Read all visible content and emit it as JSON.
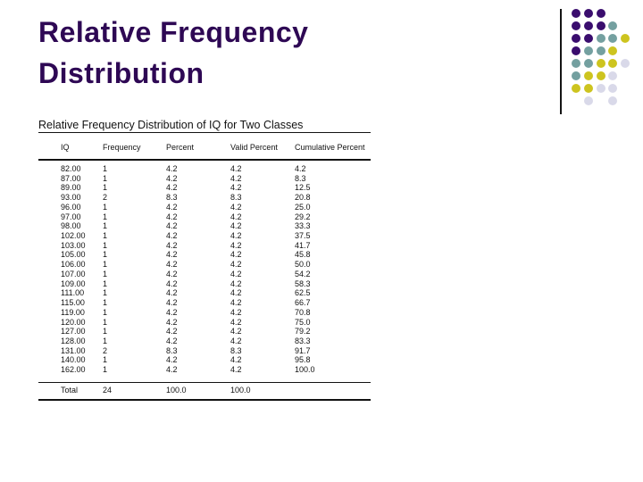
{
  "slide": {
    "title": "Relative Frequency Distribution"
  },
  "table": {
    "caption": "Relative Frequency Distribution of IQ for Two Classes",
    "headers": [
      "IQ",
      "Frequency",
      "Percent",
      "Valid Percent",
      "Cumulative Percent"
    ],
    "rows": [
      [
        "82.00",
        "1",
        "4.2",
        "4.2",
        "4.2"
      ],
      [
        "87.00",
        "1",
        "4.2",
        "4.2",
        "8.3"
      ],
      [
        "89.00",
        "1",
        "4.2",
        "4.2",
        "12.5"
      ],
      [
        "93.00",
        "2",
        "8.3",
        "8.3",
        "20.8"
      ],
      [
        "96.00",
        "1",
        "4.2",
        "4.2",
        "25.0"
      ],
      [
        "97.00",
        "1",
        "4.2",
        "4.2",
        "29.2"
      ],
      [
        "98.00",
        "1",
        "4.2",
        "4.2",
        "33.3"
      ],
      [
        "102.00",
        "1",
        "4.2",
        "4.2",
        "37.5"
      ],
      [
        "103.00",
        "1",
        "4.2",
        "4.2",
        "41.7"
      ],
      [
        "105.00",
        "1",
        "4.2",
        "4.2",
        "45.8"
      ],
      [
        "106.00",
        "1",
        "4.2",
        "4.2",
        "50.0"
      ],
      [
        "107.00",
        "1",
        "4.2",
        "4.2",
        "54.2"
      ],
      [
        "109.00",
        "1",
        "4.2",
        "4.2",
        "58.3"
      ],
      [
        "111.00",
        "1",
        "4.2",
        "4.2",
        "62.5"
      ],
      [
        "115.00",
        "1",
        "4.2",
        "4.2",
        "66.7"
      ],
      [
        "119.00",
        "1",
        "4.2",
        "4.2",
        "70.8"
      ],
      [
        "120.00",
        "1",
        "4.2",
        "4.2",
        "75.0"
      ],
      [
        "127.00",
        "1",
        "4.2",
        "4.2",
        "79.2"
      ],
      [
        "128.00",
        "1",
        "4.2",
        "4.2",
        "83.3"
      ],
      [
        "131.00",
        "2",
        "8.3",
        "8.3",
        "91.7"
      ],
      [
        "140.00",
        "1",
        "4.2",
        "4.2",
        "95.8"
      ],
      [
        "162.00",
        "1",
        "4.2",
        "4.2",
        "100.0"
      ]
    ],
    "total_row": [
      "Total",
      "24",
      "100.0",
      "100.0",
      ""
    ]
  },
  "decoration": {
    "dot_colors": {
      "P": "#3A0D6E",
      "T": "#74A0A0",
      "Y": "#CDC41F",
      "L": "#D9D9E9"
    },
    "pattern": [
      [
        [
          1,
          "P"
        ],
        [
          2,
          "P"
        ],
        [
          3,
          "P"
        ]
      ],
      [
        [
          1,
          "P"
        ],
        [
          2,
          "P"
        ],
        [
          3,
          "P"
        ],
        [
          4,
          "T"
        ]
      ],
      [
        [
          1,
          "P"
        ],
        [
          2,
          "P"
        ],
        [
          3,
          "T"
        ],
        [
          4,
          "T"
        ],
        [
          5,
          "Y"
        ]
      ],
      [
        [
          1,
          "P"
        ],
        [
          2,
          "T"
        ],
        [
          3,
          "T"
        ],
        [
          4,
          "Y"
        ]
      ],
      [
        [
          1,
          "T"
        ],
        [
          2,
          "T"
        ],
        [
          3,
          "Y"
        ],
        [
          4,
          "Y"
        ],
        [
          5,
          "L"
        ]
      ],
      [
        [
          1,
          "T"
        ],
        [
          2,
          "Y"
        ],
        [
          3,
          "Y"
        ],
        [
          4,
          "L"
        ]
      ],
      [
        [
          1,
          "Y"
        ],
        [
          2,
          "Y"
        ],
        [
          3,
          "L"
        ],
        [
          4,
          "L"
        ]
      ],
      [
        [
          2,
          "L"
        ],
        [
          4,
          "L"
        ]
      ]
    ]
  },
  "theme": {
    "title_color": "#2E0854",
    "text_color": "#121212",
    "background": "#FFFFFF",
    "accent_line_color": "#141414"
  }
}
